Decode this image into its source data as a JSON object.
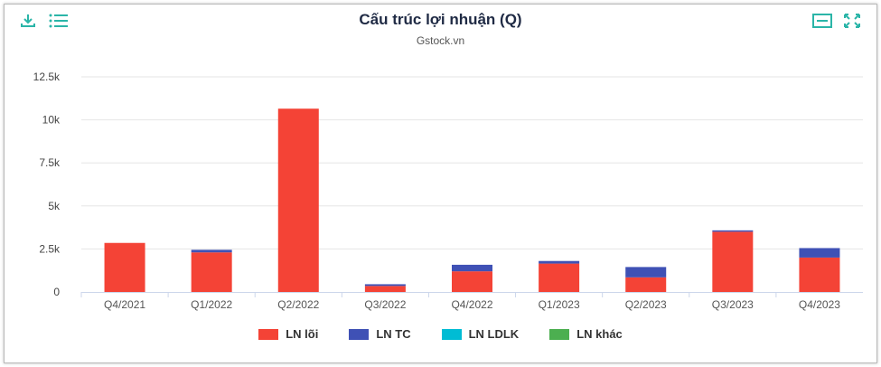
{
  "header": {
    "title": "Cấu trúc lợi nhuận (Q)",
    "subtitle": "Gstock.vn"
  },
  "toolbar": {
    "left_icons": [
      "download-icon",
      "menu-list-icon"
    ],
    "right_icons": [
      "minimize-icon",
      "fullscreen-icon"
    ],
    "icon_color": "#2bb5a8"
  },
  "chart_data": {
    "type": "bar",
    "stacked": true,
    "categories": [
      "Q4/2021",
      "Q1/2022",
      "Q2/2022",
      "Q3/2022",
      "Q4/2022",
      "Q1/2023",
      "Q2/2023",
      "Q3/2023",
      "Q4/2023"
    ],
    "series": [
      {
        "name": "LN lõi",
        "color": "#f44336",
        "values": [
          2850,
          2300,
          10650,
          350,
          1200,
          1650,
          850,
          3500,
          2000
        ]
      },
      {
        "name": "LN TC",
        "color": "#3f51b5",
        "values": [
          0,
          150,
          0,
          100,
          380,
          150,
          600,
          80,
          550
        ]
      },
      {
        "name": "LN LDLK",
        "color": "#00bcd4",
        "values": [
          0,
          0,
          0,
          0,
          0,
          0,
          0,
          0,
          0
        ]
      },
      {
        "name": "LN khác",
        "color": "#4caf50",
        "values": [
          0,
          0,
          0,
          0,
          0,
          0,
          0,
          0,
          0
        ]
      }
    ],
    "y_ticks": [
      "0",
      "2.5k",
      "5k",
      "7.5k",
      "10k",
      "12.5k"
    ],
    "ylim": [
      0,
      12500
    ],
    "grid": true,
    "legend": "bottom"
  }
}
